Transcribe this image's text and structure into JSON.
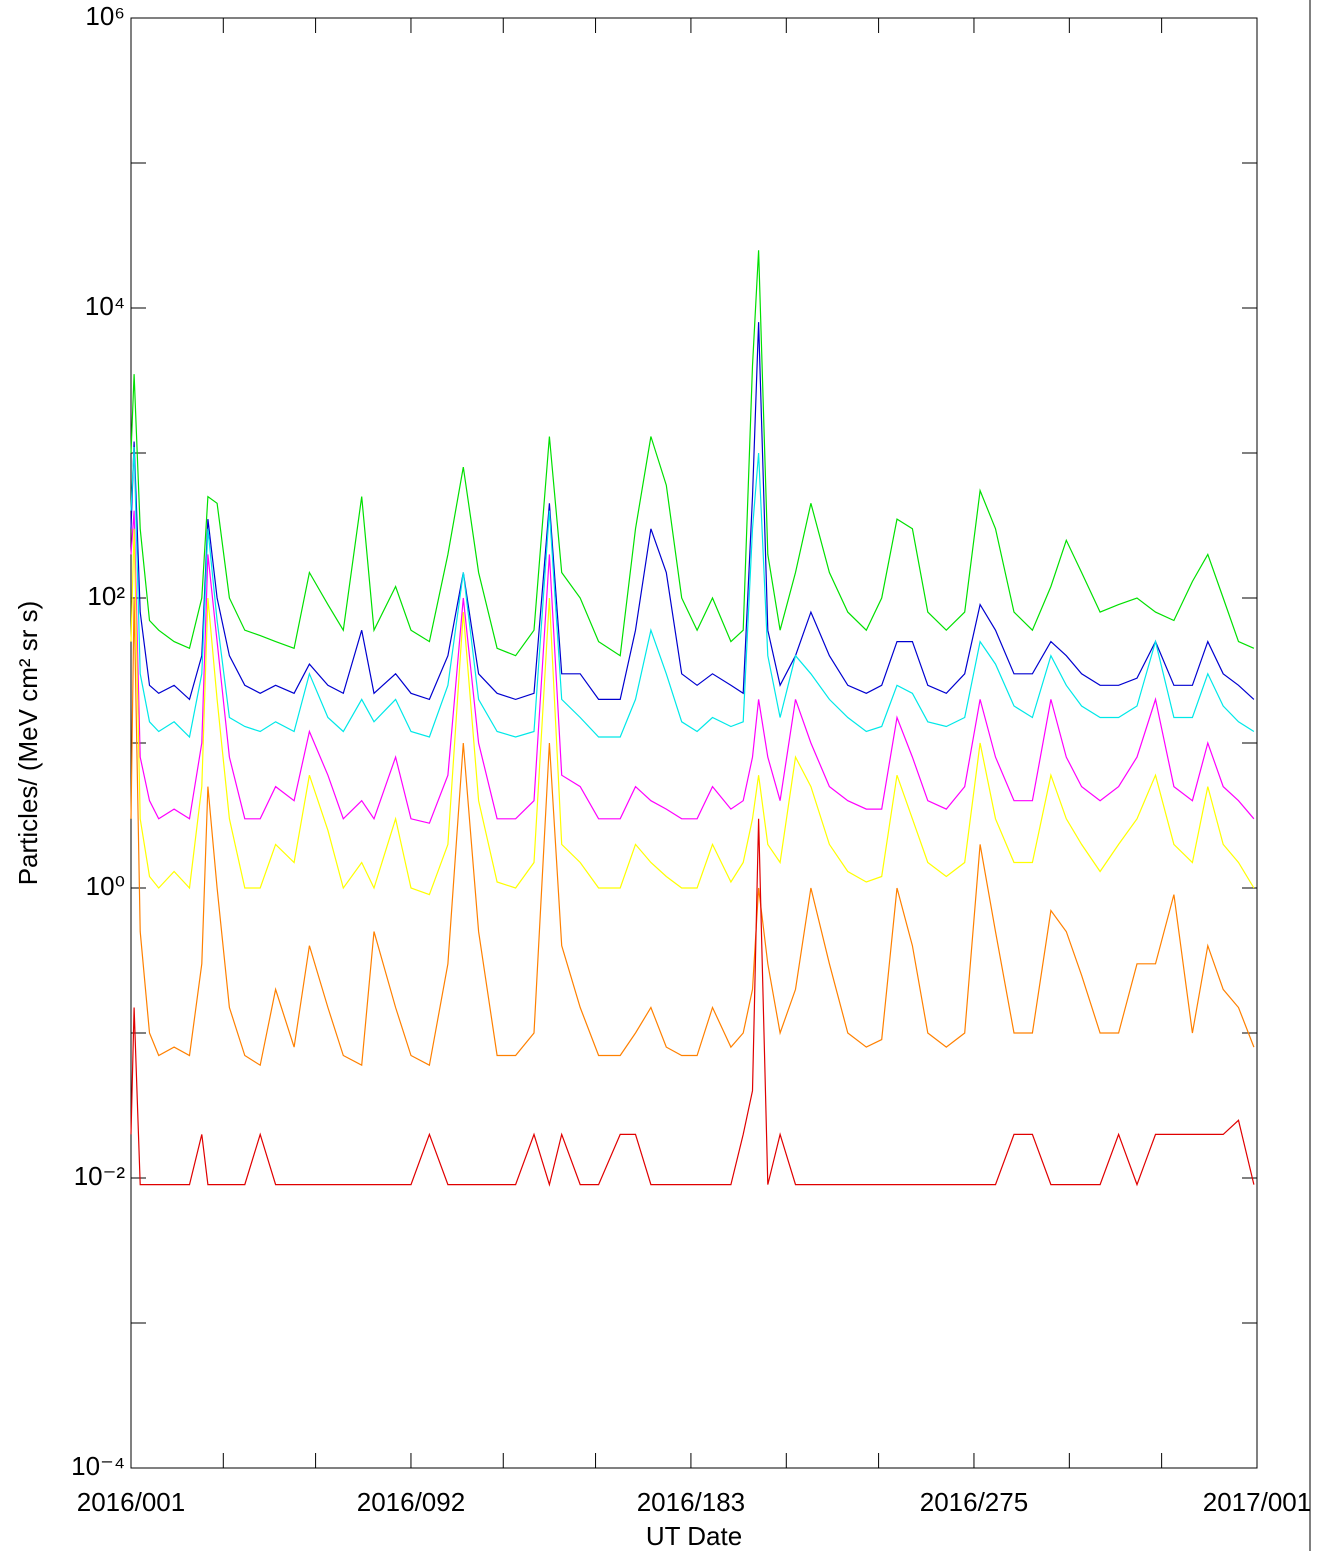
{
  "chart_data": {
    "type": "line",
    "x_label": "UT Date",
    "y_label": "Particles/ (MeV cm² sr s)",
    "log_y": true,
    "xlim": [
      1,
      367
    ],
    "ylim": [
      0.0001,
      1000000
    ],
    "xticks": [
      {
        "value": 1,
        "label": "2016/001"
      },
      {
        "value": 92,
        "label": "2016/092"
      },
      {
        "value": 183,
        "label": "2016/183"
      },
      {
        "value": 275,
        "label": "2016/275"
      },
      {
        "value": 367,
        "label": "2017/001"
      }
    ],
    "xminor_ticks": [
      31,
      61,
      122,
      152,
      214,
      244,
      306,
      336
    ],
    "yticks": [
      {
        "value": 0.0001,
        "label": "10⁻⁴"
      },
      {
        "value": 0.01,
        "label": "10⁻²"
      },
      {
        "value": 1,
        "label": "10⁰"
      },
      {
        "value": 100,
        "label": "10²"
      },
      {
        "value": 10000,
        "label": "10⁴"
      },
      {
        "value": 1000000,
        "label": "10⁶"
      }
    ],
    "yminor_ticks": [
      0.001,
      0.1,
      10,
      1000,
      100000
    ],
    "x": [
      1,
      2,
      4,
      7,
      10,
      15,
      20,
      24,
      26,
      29,
      33,
      38,
      43,
      48,
      54,
      59,
      65,
      70,
      76,
      80,
      87,
      92,
      98,
      104,
      109,
      114,
      120,
      126,
      132,
      137,
      141,
      147,
      153,
      160,
      165,
      170,
      175,
      180,
      185,
      190,
      196,
      200,
      203,
      205,
      208,
      212,
      217,
      222,
      228,
      234,
      240,
      245,
      250,
      255,
      260,
      266,
      272,
      277,
      282,
      288,
      294,
      300,
      305,
      310,
      316,
      322,
      328,
      334,
      340,
      346,
      351,
      356,
      361,
      366
    ],
    "series": [
      {
        "color": "#00e000",
        "values": [
          1000,
          3500,
          300,
          70,
          60,
          50,
          45,
          100,
          500,
          450,
          100,
          60,
          55,
          50,
          45,
          150,
          90,
          60,
          500,
          60,
          120,
          60,
          50,
          200,
          800,
          150,
          45,
          40,
          60,
          1300,
          150,
          100,
          50,
          40,
          300,
          1300,
          600,
          100,
          60,
          100,
          50,
          60,
          4000,
          25000,
          200,
          60,
          150,
          450,
          150,
          80,
          60,
          100,
          350,
          300,
          80,
          60,
          80,
          550,
          300,
          80,
          60,
          120,
          250,
          150,
          80,
          90,
          100,
          80,
          70,
          130,
          200,
          100,
          50,
          45
        ]
      },
      {
        "color": "#0000d0",
        "values": [
          300,
          1200,
          80,
          25,
          22,
          25,
          20,
          40,
          350,
          100,
          40,
          25,
          22,
          25,
          22,
          35,
          25,
          22,
          60,
          22,
          30,
          22,
          20,
          40,
          150,
          30,
          22,
          20,
          22,
          450,
          30,
          30,
          20,
          20,
          60,
          300,
          150,
          30,
          25,
          30,
          25,
          22,
          500,
          8000,
          60,
          25,
          40,
          80,
          40,
          25,
          22,
          25,
          50,
          50,
          25,
          22,
          30,
          90,
          60,
          30,
          30,
          50,
          40,
          30,
          25,
          25,
          28,
          50,
          25,
          25,
          50,
          30,
          25,
          20
        ]
      },
      {
        "color": "#00e8e8",
        "values": [
          400,
          1100,
          30,
          14,
          12,
          14,
          11,
          30,
          300,
          70,
          15,
          13,
          12,
          14,
          12,
          30,
          15,
          12,
          20,
          14,
          20,
          12,
          11,
          25,
          150,
          20,
          12,
          11,
          12,
          400,
          20,
          15,
          11,
          11,
          20,
          60,
          30,
          14,
          12,
          15,
          13,
          14,
          300,
          1000,
          40,
          15,
          40,
          30,
          20,
          15,
          12,
          13,
          25,
          22,
          14,
          13,
          15,
          50,
          35,
          18,
          15,
          40,
          25,
          18,
          15,
          15,
          18,
          50,
          15,
          15,
          30,
          18,
          14,
          12
        ]
      },
      {
        "color": "#ff00ff",
        "values": [
          200,
          400,
          8,
          4,
          3,
          3.5,
          3,
          10,
          200,
          50,
          8,
          3,
          3,
          5,
          4,
          12,
          6,
          3,
          4,
          3,
          8,
          3,
          2.8,
          6,
          100,
          10,
          3,
          3,
          4,
          200,
          6,
          5,
          3,
          3,
          5,
          4,
          3.5,
          3,
          3,
          5,
          3.5,
          4,
          8,
          20,
          8,
          4,
          20,
          10,
          5,
          4,
          3.5,
          3.5,
          15,
          8,
          4,
          3.5,
          5,
          20,
          8,
          4,
          4,
          20,
          8,
          5,
          4,
          5,
          8,
          20,
          5,
          4,
          10,
          5,
          4,
          3
        ]
      },
      {
        "color": "#ffff00",
        "values": [
          50,
          300,
          3,
          1.2,
          1,
          1.3,
          1,
          5,
          100,
          20,
          3,
          1,
          1,
          2,
          1.5,
          6,
          2.5,
          1,
          1.5,
          1,
          3,
          1,
          0.9,
          2,
          80,
          4,
          1.1,
          1,
          1.5,
          100,
          2,
          1.5,
          1,
          1,
          2,
          1.5,
          1.2,
          1,
          1,
          2,
          1.1,
          1.5,
          3,
          6,
          2,
          1.5,
          8,
          5,
          2,
          1.3,
          1.1,
          1.2,
          6,
          3,
          1.5,
          1.2,
          1.5,
          10,
          3,
          1.5,
          1.5,
          6,
          3,
          2,
          1.3,
          2,
          3,
          6,
          2,
          1.5,
          5,
          2,
          1.5,
          1
        ]
      },
      {
        "color": "#ff8000",
        "values": [
          3,
          100,
          0.5,
          0.1,
          0.07,
          0.08,
          0.07,
          0.3,
          5,
          1,
          0.15,
          0.07,
          0.06,
          0.2,
          0.08,
          0.4,
          0.15,
          0.07,
          0.06,
          0.5,
          0.15,
          0.07,
          0.06,
          0.3,
          10,
          0.5,
          0.07,
          0.07,
          0.1,
          10,
          0.4,
          0.15,
          0.07,
          0.07,
          0.1,
          0.15,
          0.08,
          0.07,
          0.07,
          0.15,
          0.08,
          0.1,
          0.2,
          1,
          0.3,
          0.1,
          0.2,
          1,
          0.3,
          0.1,
          0.08,
          0.09,
          1,
          0.4,
          0.1,
          0.08,
          0.1,
          2,
          0.5,
          0.1,
          0.1,
          0.7,
          0.5,
          0.25,
          0.1,
          0.1,
          0.3,
          0.3,
          0.9,
          0.1,
          0.4,
          0.2,
          0.15,
          0.08
        ]
      },
      {
        "color": "#e00000",
        "values": [
          0.02,
          0.15,
          0.009,
          0.009,
          0.009,
          0.009,
          0.009,
          0.02,
          0.009,
          0.009,
          0.009,
          0.009,
          0.02,
          0.009,
          0.009,
          0.009,
          0.009,
          0.009,
          0.009,
          0.009,
          0.009,
          0.009,
          0.02,
          0.009,
          0.009,
          0.009,
          0.009,
          0.009,
          0.02,
          0.009,
          0.02,
          0.009,
          0.009,
          0.02,
          0.02,
          0.009,
          0.009,
          0.009,
          0.009,
          0.009,
          0.009,
          0.02,
          0.04,
          3,
          0.009,
          0.02,
          0.009,
          0.009,
          0.009,
          0.009,
          0.009,
          0.009,
          0.009,
          0.009,
          0.009,
          0.009,
          0.009,
          0.009,
          0.009,
          0.02,
          0.02,
          0.009,
          0.009,
          0.009,
          0.009,
          0.02,
          0.009,
          0.02,
          0.02,
          0.02,
          0.02,
          0.02,
          0.025,
          0.009
        ]
      }
    ]
  }
}
